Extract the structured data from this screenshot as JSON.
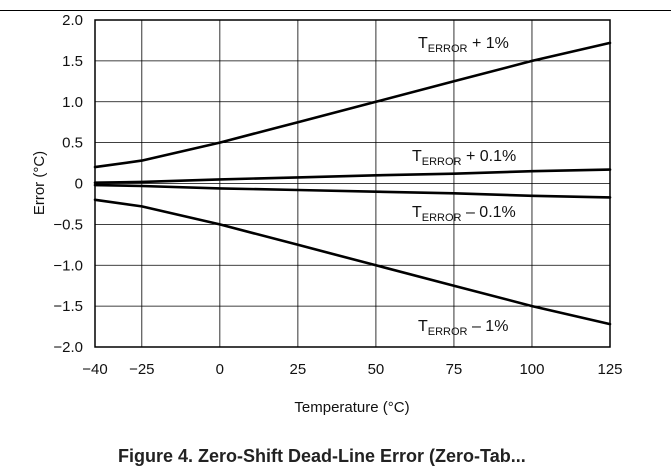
{
  "chart_data": {
    "type": "line",
    "xlabel": "Temperature (°C)",
    "ylabel": "Error (°C)",
    "xlim": [
      -40,
      125
    ],
    "ylim": [
      -2.0,
      2.0
    ],
    "x_ticks": [
      "-40",
      "-25",
      "0",
      "25",
      "50",
      "75",
      "100",
      "125"
    ],
    "y_ticks": [
      "2.0",
      "1.5",
      "1.0",
      "0.5",
      "0",
      "-0.5",
      "-1.0",
      "-1.5",
      "-2.0"
    ],
    "x_tick_values": [
      -40,
      -25,
      0,
      25,
      50,
      75,
      100,
      125
    ],
    "y_tick_values": [
      2.0,
      1.5,
      1.0,
      0.5,
      0,
      -0.5,
      -1.0,
      -1.5,
      -2.0
    ],
    "grid": true,
    "series": [
      {
        "name": "T_ERROR + 1%",
        "label_main": "T",
        "label_sub": "ERROR",
        "label_tail": " + 1%",
        "x": [
          -40,
          -25,
          0,
          25,
          50,
          75,
          100,
          125
        ],
        "y": [
          0.2,
          0.28,
          0.5,
          0.75,
          1.0,
          1.25,
          1.5,
          1.72
        ]
      },
      {
        "name": "T_ERROR + 0.1%",
        "label_main": "T",
        "label_sub": "ERROR",
        "label_tail": " + 0.1%",
        "x": [
          -40,
          -25,
          0,
          25,
          50,
          75,
          100,
          125
        ],
        "y": [
          0.01,
          0.02,
          0.05,
          0.075,
          0.1,
          0.12,
          0.15,
          0.17
        ]
      },
      {
        "name": "T_ERROR – 0.1%",
        "label_main": "T",
        "label_sub": "ERROR",
        "label_tail": " – 0.1%",
        "x": [
          -40,
          -25,
          0,
          25,
          50,
          75,
          100,
          125
        ],
        "y": [
          -0.02,
          -0.03,
          -0.06,
          -0.08,
          -0.1,
          -0.12,
          -0.15,
          -0.17
        ]
      },
      {
        "name": "T_ERROR – 1%",
        "label_main": "T",
        "label_sub": "ERROR",
        "label_tail": " – 1%",
        "x": [
          -40,
          -25,
          0,
          25,
          50,
          75,
          100,
          125
        ],
        "y": [
          -0.2,
          -0.28,
          -0.5,
          -0.75,
          -1.0,
          -1.25,
          -1.5,
          -1.72
        ]
      }
    ]
  },
  "caption": "Figure 4. Zero-Shift Dead-Line Error (Zero-Tab..."
}
